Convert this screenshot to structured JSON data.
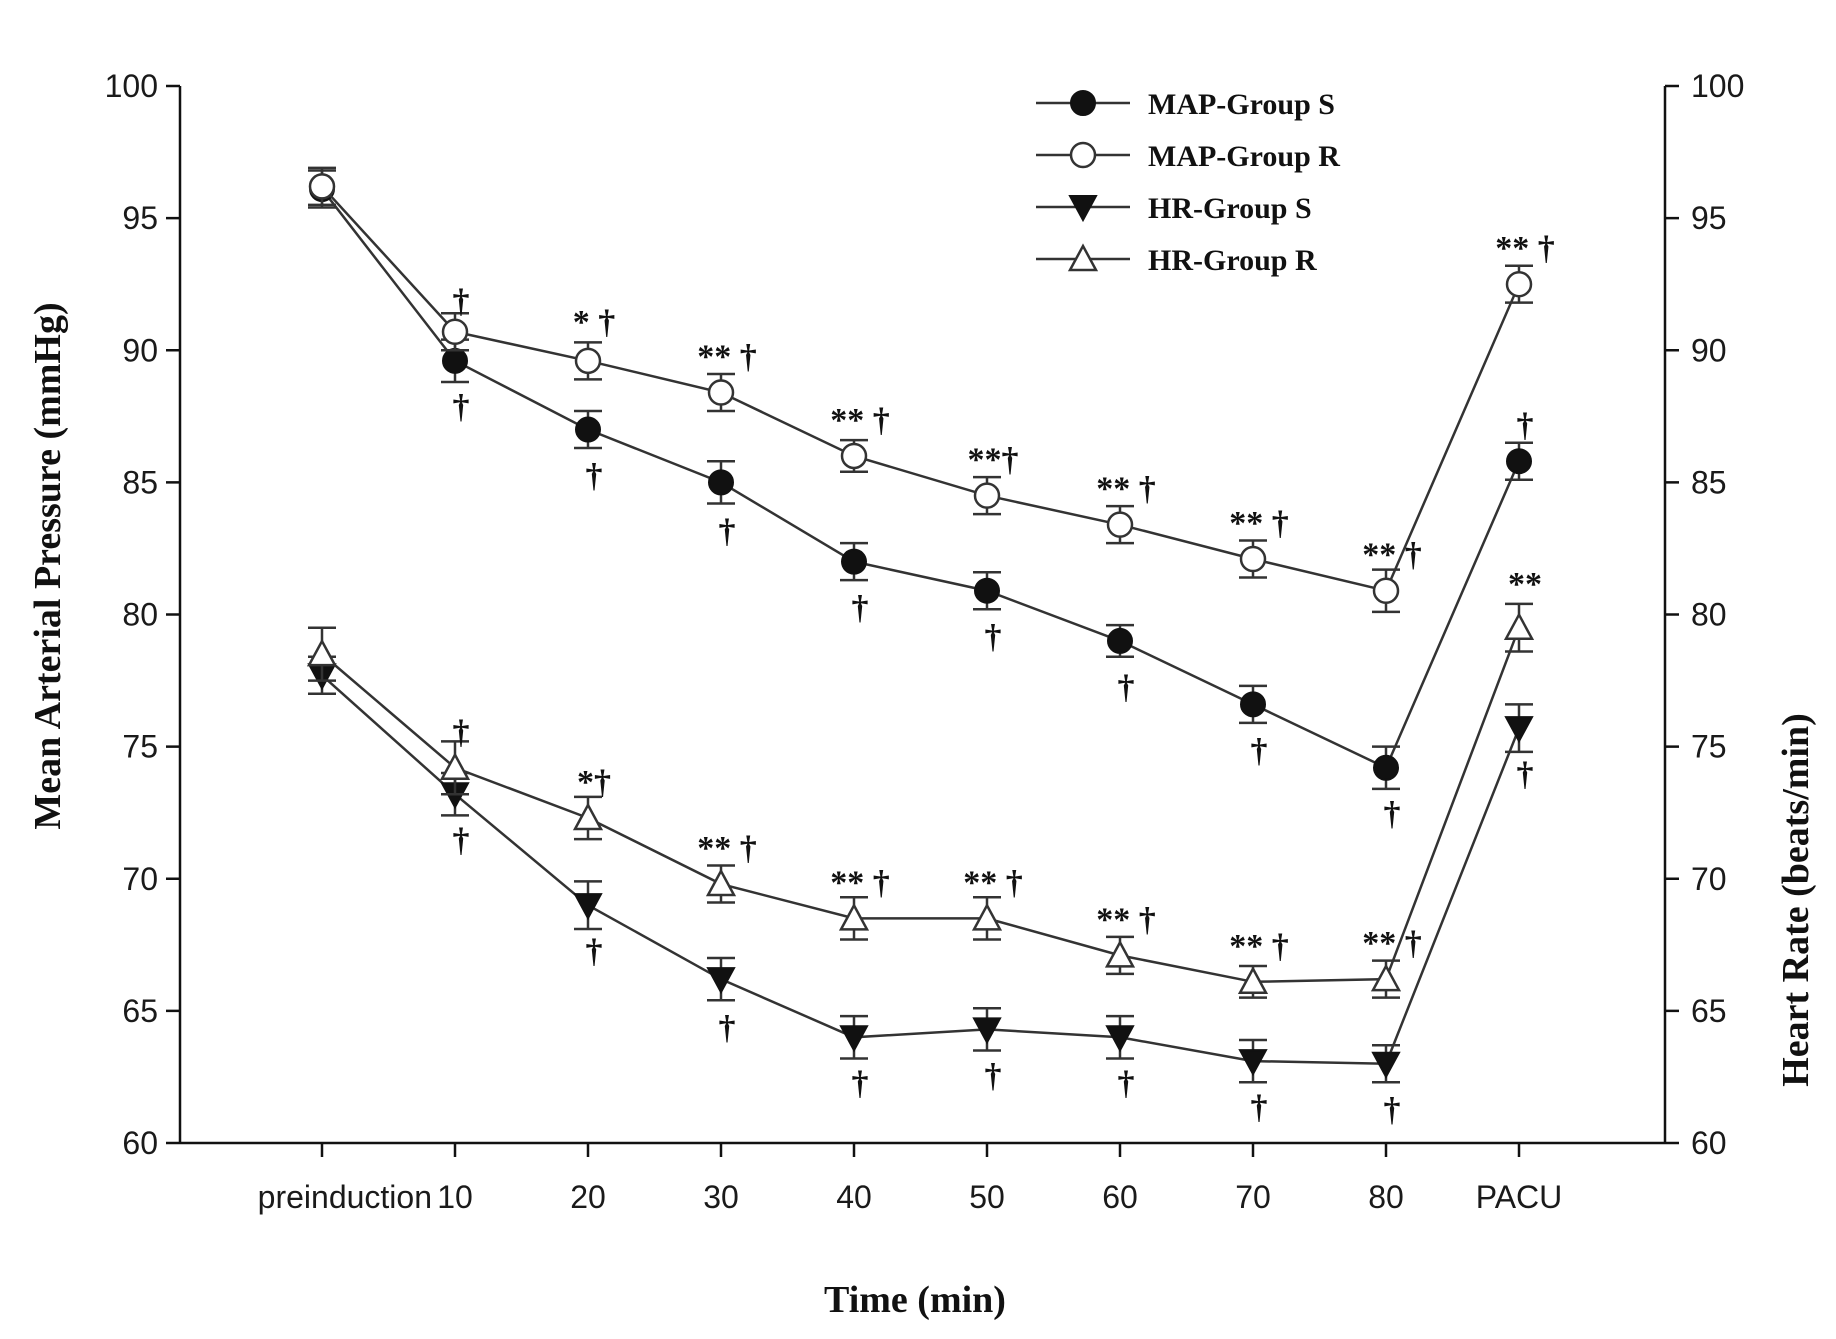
{
  "chart_data": {
    "type": "line",
    "xlabel": "Time (min)",
    "ylabel": "Mean Arterial Pressure (mmHg)",
    "y2label": "Heart Rate (beats/min)",
    "ylim": [
      60,
      100
    ],
    "y2lim": [
      60,
      100
    ],
    "yticks": [
      "60",
      "65",
      "70",
      "75",
      "80",
      "85",
      "90",
      "95",
      "100"
    ],
    "categories": [
      "preinduction",
      "10",
      "20",
      "30",
      "40",
      "50",
      "60",
      "70",
      "80",
      "PACU"
    ],
    "legend_position": "top-center",
    "series": [
      {
        "name": "MAP-Group S",
        "marker": "circle-filled",
        "values": [
          96.1,
          89.6,
          87.0,
          85.0,
          82.0,
          80.9,
          79.0,
          76.6,
          74.2,
          85.8
        ],
        "errors": [
          0.7,
          0.8,
          0.7,
          0.8,
          0.7,
          0.7,
          0.6,
          0.7,
          0.8,
          0.7
        ]
      },
      {
        "name": "MAP-Group R",
        "marker": "circle-open",
        "values": [
          96.2,
          90.7,
          89.6,
          88.4,
          86.0,
          84.5,
          83.4,
          82.1,
          80.9,
          92.5
        ],
        "errors": [
          0.7,
          0.7,
          0.7,
          0.7,
          0.6,
          0.7,
          0.7,
          0.7,
          0.8,
          0.7
        ]
      },
      {
        "name": "HR-Group S",
        "marker": "triangle-down-filled",
        "values": [
          77.7,
          73.2,
          69.0,
          66.2,
          64.0,
          64.3,
          64.0,
          63.1,
          63.0,
          75.7
        ],
        "errors": [
          0.7,
          0.8,
          0.9,
          0.8,
          0.8,
          0.8,
          0.8,
          0.8,
          0.7,
          0.9
        ]
      },
      {
        "name": "HR-Group R",
        "marker": "triangle-up-open",
        "values": [
          78.5,
          74.2,
          72.3,
          69.8,
          68.5,
          68.5,
          67.1,
          66.1,
          66.2,
          79.5
        ],
        "errors": [
          1.0,
          1.0,
          0.8,
          0.7,
          0.8,
          0.8,
          0.7,
          0.6,
          0.7,
          0.9
        ]
      }
    ],
    "annotations": [
      {
        "text": "†",
        "x": "10",
        "y": 91.9
      },
      {
        "text": "†",
        "x": "10",
        "y": 87.9
      },
      {
        "text": "* †",
        "x": "20",
        "y": 91.1
      },
      {
        "text": "†",
        "x": "20",
        "y": 85.3
      },
      {
        "text": "** †",
        "x": "30",
        "y": 89.8
      },
      {
        "text": "†",
        "x": "30",
        "y": 83.2
      },
      {
        "text": "** †",
        "x": "40",
        "y": 87.4
      },
      {
        "text": "†",
        "x": "40",
        "y": 80.3
      },
      {
        "text": "**†",
        "x": "50",
        "y": 85.9
      },
      {
        "text": "†",
        "x": "50",
        "y": 79.2
      },
      {
        "text": "** †",
        "x": "60",
        "y": 84.8
      },
      {
        "text": "†",
        "x": "60",
        "y": 77.3
      },
      {
        "text": "** †",
        "x": "70",
        "y": 83.5
      },
      {
        "text": "†",
        "x": "70",
        "y": 74.9
      },
      {
        "text": "** †",
        "x": "80",
        "y": 82.3
      },
      {
        "text": "†",
        "x": "80",
        "y": 72.5
      },
      {
        "text": "** †",
        "x": "PACU",
        "y": 93.9
      },
      {
        "text": "†",
        "x": "PACU",
        "y": 87.2
      },
      {
        "text": "†",
        "x": "10",
        "y": 75.6
      },
      {
        "text": "†",
        "x": "10",
        "y": 71.5
      },
      {
        "text": "*†",
        "x": "20",
        "y": 73.7
      },
      {
        "text": "†",
        "x": "20",
        "y": 67.3
      },
      {
        "text": "** †",
        "x": "30",
        "y": 71.2
      },
      {
        "text": "†",
        "x": "30",
        "y": 64.4
      },
      {
        "text": "** †",
        "x": "40",
        "y": 69.9
      },
      {
        "text": "†",
        "x": "40",
        "y": 62.3
      },
      {
        "text": "** †",
        "x": "50",
        "y": 69.9
      },
      {
        "text": "†",
        "x": "50",
        "y": 62.6
      },
      {
        "text": "** †",
        "x": "60",
        "y": 68.5
      },
      {
        "text": "†",
        "x": "60",
        "y": 62.3
      },
      {
        "text": "** †",
        "x": "70",
        "y": 67.5
      },
      {
        "text": "†",
        "x": "70",
        "y": 61.4
      },
      {
        "text": "** †",
        "x": "80",
        "y": 67.6
      },
      {
        "text": "†",
        "x": "80",
        "y": 61.3
      },
      {
        "text": "**",
        "x": "PACU",
        "y": 81.2
      },
      {
        "text": "†",
        "x": "PACU",
        "y": 74.0
      }
    ]
  }
}
